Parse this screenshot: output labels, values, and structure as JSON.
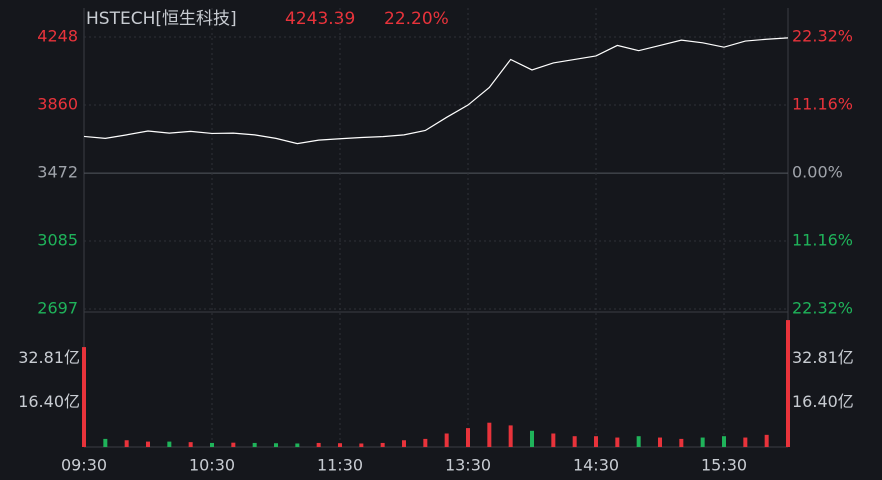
{
  "chart_data": [
    {
      "type": "line",
      "title": "HSTECH[恒生科技]",
      "last_price": 4243.39,
      "last_change": {
        "value": 22.2,
        "label": "22.20%"
      },
      "x": [
        0,
        10,
        20,
        30,
        40,
        50,
        60,
        70,
        80,
        90,
        100,
        110,
        120,
        130,
        140,
        150,
        160,
        170,
        180,
        190,
        200,
        210,
        220,
        230,
        240,
        250,
        260,
        270,
        280,
        290,
        300,
        310,
        320,
        330
      ],
      "series": [
        {
          "color": "#ffffff",
          "values": [
            3681,
            3670,
            3690,
            3712,
            3700,
            3710,
            3698,
            3700,
            3690,
            3670,
            3640,
            3660,
            3668,
            3675,
            3680,
            3690,
            3715,
            3790,
            3860,
            3960,
            4120,
            4060,
            4100,
            4120,
            4140,
            4200,
            4170,
            4200,
            4230,
            4215,
            4190,
            4225,
            4235,
            4243
          ]
        }
      ],
      "xlim": [
        0,
        330
      ],
      "xticks": [
        {
          "value": 0,
          "label": "09:30"
        },
        {
          "value": 60,
          "label": "10:30"
        },
        {
          "value": 120,
          "label": "11:30"
        },
        {
          "value": 180,
          "label": "13:30"
        },
        {
          "value": 240,
          "label": "14:30"
        },
        {
          "value": 300,
          "label": "15:30"
        }
      ],
      "ylim": [
        2697,
        4248
      ],
      "yticks": [
        4248,
        3860,
        3472,
        3085,
        2697
      ],
      "y2lim": [
        -22.32,
        22.32
      ],
      "y2ticks": [
        {
          "value": 22.32,
          "label": "22.32%"
        },
        {
          "value": 11.16,
          "label": "11.16%"
        },
        {
          "value": 0,
          "label": "0.00%"
        },
        {
          "value": -11.16,
          "label": "11.16%"
        },
        {
          "value": -22.32,
          "label": "22.32%"
        }
      ],
      "up_color": "#e8333b",
      "down_color": "#1fb35a",
      "flat_color": "#a0a4ab",
      "grid": true
    },
    {
      "type": "bar",
      "x": [
        0,
        10,
        20,
        30,
        40,
        50,
        60,
        70,
        80,
        90,
        100,
        110,
        120,
        130,
        140,
        150,
        160,
        170,
        180,
        190,
        200,
        210,
        220,
        230,
        240,
        250,
        260,
        270,
        280,
        290,
        300,
        310,
        320,
        330
      ],
      "values": [
        37,
        3,
        2.5,
        2,
        2,
        1.8,
        1.5,
        1.6,
        1.5,
        1.4,
        1.3,
        1.5,
        1.4,
        1.3,
        1.5,
        2.5,
        3,
        5,
        7,
        9,
        8,
        6,
        5,
        4,
        4,
        3.5,
        4,
        3.5,
        3,
        3.5,
        4,
        3.5,
        4.5,
        47
      ],
      "colors": [
        "#e8333b",
        "#1fb35a",
        "#e8333b",
        "#e8333b",
        "#1fb35a",
        "#e8333b",
        "#1fb35a",
        "#e8333b",
        "#1fb35a",
        "#1fb35a",
        "#1fb35a",
        "#e8333b",
        "#e8333b",
        "#e8333b",
        "#e8333b",
        "#e8333b",
        "#e8333b",
        "#e8333b",
        "#e8333b",
        "#e8333b",
        "#e8333b",
        "#1fb35a",
        "#e8333b",
        "#e8333b",
        "#e8333b",
        "#e8333b",
        "#1fb35a",
        "#e8333b",
        "#e8333b",
        "#1fb35a",
        "#1fb35a",
        "#e8333b",
        "#e8333b",
        "#e8333b"
      ],
      "ylim": [
        0,
        50
      ],
      "yticks": [
        {
          "value": 32.81,
          "label": "32.81亿"
        },
        {
          "value": 16.4,
          "label": "16.40亿"
        }
      ]
    }
  ]
}
